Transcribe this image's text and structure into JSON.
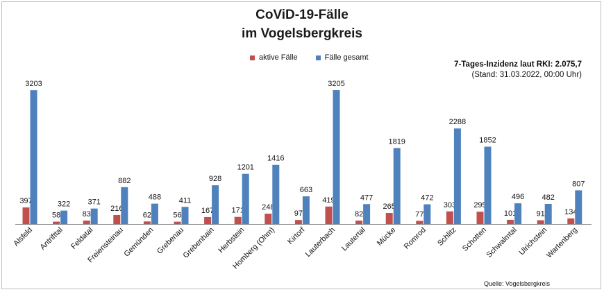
{
  "chart_data": {
    "type": "bar",
    "title": "CoViD-19-Fälle",
    "subtitle": "im Vogelsbergkreis",
    "categories": [
      "Alsfeld",
      "Antrifttal",
      "Feldatal",
      "Freiensteinau",
      "Gemünden",
      "Grebenau",
      "Grebenhain",
      "Herbstein",
      "Homberg (Ohm)",
      "Kirtorf",
      "Lauterbach",
      "Lautertal",
      "Mücke",
      "Romrod",
      "Schlitz",
      "Schotten",
      "Schwalmtal",
      "Ulrichstein",
      "Wartenberg"
    ],
    "series": [
      {
        "name": "aktive Fälle",
        "color": "#c0504d",
        "values": [
          397,
          58,
          83,
          216,
          62,
          56,
          167,
          171,
          248,
          97,
          419,
          82,
          265,
          77,
          303,
          295,
          101,
          91,
          134
        ]
      },
      {
        "name": "Fälle gesamt",
        "color": "#4f81bd",
        "values": [
          3203,
          322,
          371,
          882,
          488,
          411,
          928,
          1201,
          1416,
          663,
          3205,
          477,
          1819,
          472,
          2288,
          1852,
          496,
          482,
          807
        ]
      }
    ],
    "ylim": [
      0,
      3205
    ],
    "grid": false,
    "legend_position": "top-center",
    "annotation": {
      "line1": "7-Tages-Inzidenz laut RKI: 2.075,7",
      "line2": "(Stand: 31.03.2022, 00:00 Uhr)"
    },
    "source": "Quelle: Vogelsbergkreis"
  }
}
